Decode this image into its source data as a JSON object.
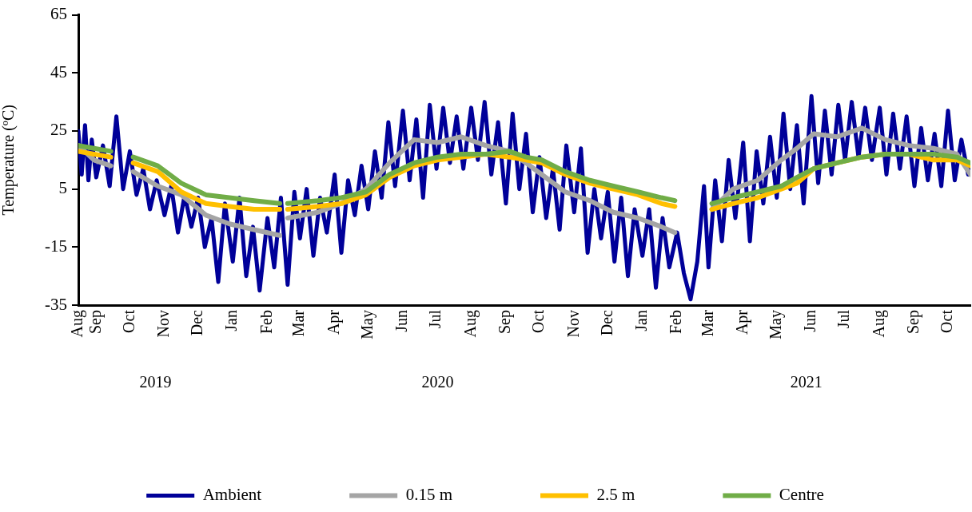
{
  "chart_data": {
    "type": "line",
    "ylabel": "Temperature (ºC)",
    "legend": "bottom",
    "line_style": "solid",
    "annotations": [
      "2019",
      "2020",
      "2021"
    ],
    "xlim": [
      "2019-08-16",
      "2021-10-21"
    ],
    "xticks": [
      {
        "value": "2019-08-16",
        "label": "Aug"
      },
      {
        "value": "2019-09-01",
        "label": "Sep"
      },
      {
        "value": "2019-10-01",
        "label": "Oct"
      },
      {
        "value": "2019-11-01",
        "label": "Nov"
      },
      {
        "value": "2019-12-01",
        "label": "Dec"
      },
      {
        "value": "2020-01-01",
        "label": "Jan"
      },
      {
        "value": "2020-02-01",
        "label": "Feb"
      },
      {
        "value": "2020-03-01",
        "label": "Mar"
      },
      {
        "value": "2020-04-01",
        "label": "Apr"
      },
      {
        "value": "2020-05-01",
        "label": "May"
      },
      {
        "value": "2020-06-01",
        "label": "Jun"
      },
      {
        "value": "2020-07-01",
        "label": "Jul"
      },
      {
        "value": "2020-08-01",
        "label": "Aug"
      },
      {
        "value": "2020-09-01",
        "label": "Sep"
      },
      {
        "value": "2020-10-01",
        "label": "Oct"
      },
      {
        "value": "2020-11-01",
        "label": "Nov"
      },
      {
        "value": "2020-12-01",
        "label": "Dec"
      },
      {
        "value": "2021-01-01",
        "label": "Jan"
      },
      {
        "value": "2021-02-01",
        "label": "Feb"
      },
      {
        "value": "2021-03-01",
        "label": "Mar"
      },
      {
        "value": "2021-04-01",
        "label": "Apr"
      },
      {
        "value": "2021-05-01",
        "label": "May"
      },
      {
        "value": "2021-06-01",
        "label": "Jun"
      },
      {
        "value": "2021-07-01",
        "label": "Jul"
      },
      {
        "value": "2021-08-01",
        "label": "Aug"
      },
      {
        "value": "2021-09-01",
        "label": "Sep"
      },
      {
        "value": "2021-10-01",
        "label": "Oct"
      }
    ],
    "ylim": [
      -35,
      65
    ],
    "yticks": [
      -35,
      -15,
      5,
      25,
      45,
      65
    ],
    "x": [
      "2019-08-16",
      "2019-08-30",
      "2019-09-14",
      "2019-09-24",
      "2019-10-04",
      "2019-10-26",
      "2019-11-16",
      "2019-12-08",
      "2019-12-29",
      "2020-01-20",
      "2020-02-12",
      "2020-02-16",
      "2020-02-19",
      "2020-03-17",
      "2020-04-07",
      "2020-04-29",
      "2020-05-20",
      "2020-06-11",
      "2020-07-02",
      "2020-07-23",
      "2020-08-14",
      "2020-09-04",
      "2020-09-19",
      "2020-10-03",
      "2020-10-24",
      "2020-11-15",
      "2020-12-06",
      "2020-12-28",
      "2021-01-18",
      "2021-01-30",
      "2021-02-15",
      "2021-03-04",
      "2021-03-23",
      "2021-04-14",
      "2021-05-05",
      "2021-05-19",
      "2021-06-03",
      "2021-06-24",
      "2021-07-16",
      "2021-08-06",
      "2021-08-27",
      "2021-09-18",
      "2021-10-09",
      "2021-10-21"
    ],
    "series": [
      {
        "name": "Ambient",
        "color": "#000099",
        "x": [
          "2019-08-16",
          "2019-08-19",
          "2019-08-22",
          "2019-08-25",
          "2019-08-28",
          "2019-09-01",
          "2019-09-07",
          "2019-09-13",
          "2019-09-19",
          "2019-09-25",
          "2019-10-01",
          "2019-10-07",
          "2019-10-13",
          "2019-10-19",
          "2019-10-25",
          "2019-11-01",
          "2019-11-07",
          "2019-11-13",
          "2019-11-19",
          "2019-11-25",
          "2019-12-01",
          "2019-12-07",
          "2019-12-13",
          "2019-12-19",
          "2019-12-25",
          "2020-01-01",
          "2020-01-07",
          "2020-01-13",
          "2020-01-19",
          "2020-01-25",
          "2020-02-01",
          "2020-02-07",
          "2020-02-13",
          "2020-02-19",
          "2020-02-25",
          "2020-03-01",
          "2020-03-07",
          "2020-03-13",
          "2020-03-19",
          "2020-03-25",
          "2020-04-01",
          "2020-04-07",
          "2020-04-13",
          "2020-04-19",
          "2020-04-25",
          "2020-05-01",
          "2020-05-07",
          "2020-05-13",
          "2020-05-19",
          "2020-05-25",
          "2020-06-01",
          "2020-06-07",
          "2020-06-13",
          "2020-06-19",
          "2020-06-25",
          "2020-07-01",
          "2020-07-07",
          "2020-07-13",
          "2020-07-19",
          "2020-07-25",
          "2020-08-01",
          "2020-08-07",
          "2020-08-13",
          "2020-08-19",
          "2020-08-25",
          "2020-09-01",
          "2020-09-07",
          "2020-09-13",
          "2020-09-19",
          "2020-09-25",
          "2020-10-01",
          "2020-10-07",
          "2020-10-13",
          "2020-10-19",
          "2020-10-25",
          "2020-11-01",
          "2020-11-07",
          "2020-11-13",
          "2020-11-19",
          "2020-11-25",
          "2020-12-01",
          "2020-12-07",
          "2020-12-13",
          "2020-12-19",
          "2020-12-25",
          "2021-01-01",
          "2021-01-07",
          "2021-01-13",
          "2021-01-19",
          "2021-01-25",
          "2021-02-01",
          "2021-02-07",
          "2021-02-13",
          "2021-02-19",
          "2021-02-25",
          "2021-03-01",
          "2021-03-07",
          "2021-03-13",
          "2021-03-19",
          "2021-03-25",
          "2021-04-01",
          "2021-04-07",
          "2021-04-13",
          "2021-04-19",
          "2021-04-25",
          "2021-05-01",
          "2021-05-07",
          "2021-05-13",
          "2021-05-19",
          "2021-05-25",
          "2021-06-01",
          "2021-06-07",
          "2021-06-13",
          "2021-06-19",
          "2021-06-25",
          "2021-07-01",
          "2021-07-07",
          "2021-07-13",
          "2021-07-19",
          "2021-07-25",
          "2021-08-01",
          "2021-08-07",
          "2021-08-13",
          "2021-08-19",
          "2021-08-25",
          "2021-09-01",
          "2021-09-07",
          "2021-09-13",
          "2021-09-19",
          "2021-09-25",
          "2021-10-01",
          "2021-10-07",
          "2021-10-13",
          "2021-10-19",
          "2021-10-21"
        ],
        "values": [
          25,
          10,
          27,
          8,
          22,
          9,
          20,
          6,
          30,
          5,
          18,
          3,
          12,
          -2,
          8,
          -4,
          6,
          -10,
          3,
          -8,
          2,
          -15,
          -5,
          -27,
          0,
          -20,
          2,
          -25,
          -8,
          -30,
          -5,
          -22,
          2,
          -28,
          4,
          -12,
          5,
          -18,
          2,
          -10,
          10,
          -17,
          8,
          -4,
          13,
          -2,
          18,
          2,
          28,
          6,
          32,
          8,
          29,
          2,
          34,
          12,
          33,
          14,
          30,
          12,
          33,
          15,
          35,
          10,
          28,
          0,
          31,
          5,
          24,
          -3,
          16,
          -5,
          12,
          -9,
          20,
          -3,
          19,
          -17,
          5,
          -12,
          4,
          -20,
          2,
          -25,
          -2,
          -18,
          -2,
          -29,
          -5,
          -22,
          -10,
          -24,
          -33,
          -20,
          6,
          -22,
          8,
          -13,
          15,
          -5,
          21,
          -13,
          18,
          0,
          23,
          2,
          31,
          5,
          27,
          0,
          37,
          7,
          32,
          10,
          34,
          15,
          35,
          16,
          33,
          15,
          33,
          10,
          31,
          12,
          30,
          6,
          26,
          8,
          24,
          6,
          32,
          8,
          22,
          10,
          12
        ]
      },
      {
        "name": "0.15 m",
        "color": "#a5a5a5",
        "values": [
          20,
          15,
          13,
          null,
          11,
          6,
          3,
          -4,
          -7,
          -9,
          -11,
          null,
          -5,
          -3,
          0,
          5,
          14,
          22,
          21,
          23,
          20,
          18,
          14,
          10,
          4,
          1,
          -3,
          -5,
          -8,
          -10,
          null,
          -2,
          5,
          8,
          15,
          19,
          24,
          23,
          26,
          22,
          20,
          19,
          17,
          10
        ]
      },
      {
        "name": "2.5 m",
        "color": "#ffc000",
        "values": [
          18,
          17,
          16,
          null,
          14,
          11,
          4,
          0,
          -1,
          -2,
          -2,
          null,
          -2,
          -1,
          0,
          3,
          9,
          13,
          15,
          16,
          17,
          16,
          15,
          14,
          10,
          7,
          5,
          3,
          0,
          -1,
          null,
          -2,
          0,
          2,
          5,
          7,
          12,
          14,
          16,
          17,
          17,
          15,
          15,
          13
        ]
      },
      {
        "name": "Centre",
        "color": "#70ad47",
        "values": [
          20,
          19,
          18,
          null,
          16,
          13,
          7,
          3,
          2,
          1,
          0,
          null,
          0,
          1,
          2,
          4,
          10,
          14,
          16,
          17,
          17,
          18,
          16,
          15,
          11,
          8,
          6,
          4,
          2,
          1,
          null,
          0,
          2,
          4,
          6,
          9,
          12,
          14,
          16,
          17,
          17,
          17,
          16,
          14
        ]
      }
    ]
  }
}
